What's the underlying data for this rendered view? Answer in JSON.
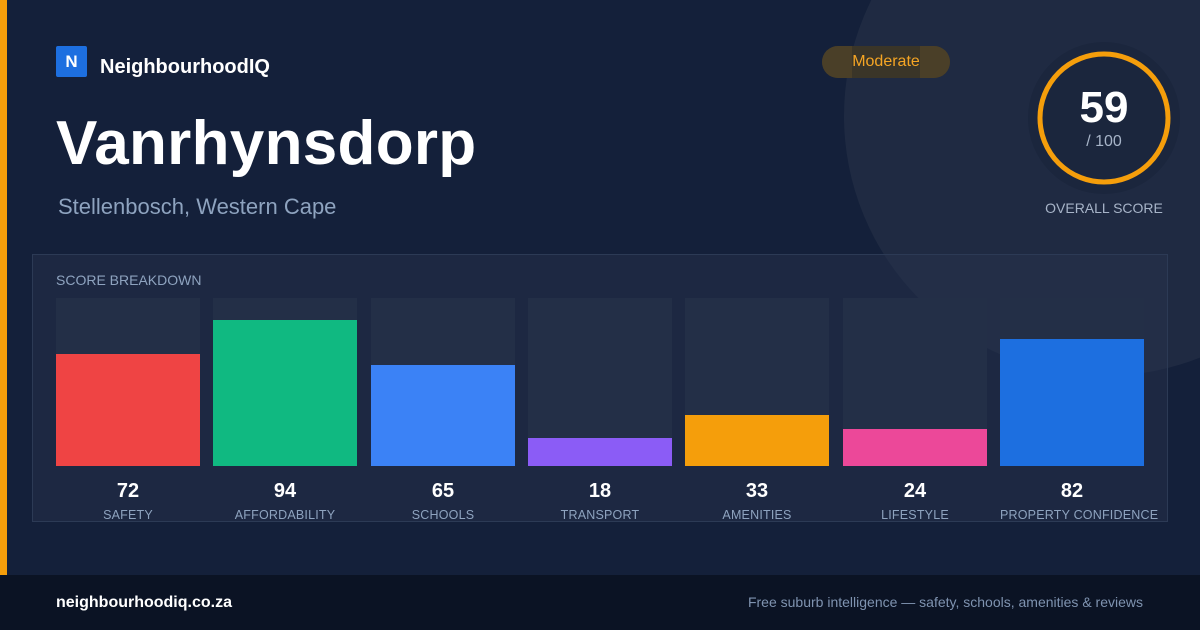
{
  "brand": {
    "logo_letter": "N",
    "name": "NeighbourhoodIQ"
  },
  "suburb": {
    "name": "Vanrhynsdorp",
    "location": "Stellenbosch, Western Cape"
  },
  "badge": {
    "label": "Moderate",
    "color": "#f5a524"
  },
  "overall": {
    "score": "59",
    "max": "/ 100",
    "label": "OVERALL SCORE",
    "fraction": 0.59,
    "ring_color": "#f59e0b"
  },
  "breakdown": {
    "title": "SCORE BREAKDOWN"
  },
  "chart_data": {
    "type": "bar",
    "title": "SCORE BREAKDOWN",
    "categories": [
      "SAFETY",
      "AFFORDABILITY",
      "SCHOOLS",
      "TRANSPORT",
      "AMENITIES",
      "LIFESTYLE",
      "PROPERTY CONFIDENCE"
    ],
    "values": [
      72,
      94,
      65,
      18,
      33,
      24,
      82
    ],
    "colors": [
      "#ef4444",
      "#10b981",
      "#3b82f6",
      "#8b5cf6",
      "#f59e0b",
      "#ec4899",
      "#1d6fe0"
    ],
    "ylim": [
      0,
      100
    ]
  },
  "footer": {
    "url": "neighbourhoodiq.co.za",
    "tagline": "Free suburb intelligence — safety, schools, amenities & reviews"
  }
}
